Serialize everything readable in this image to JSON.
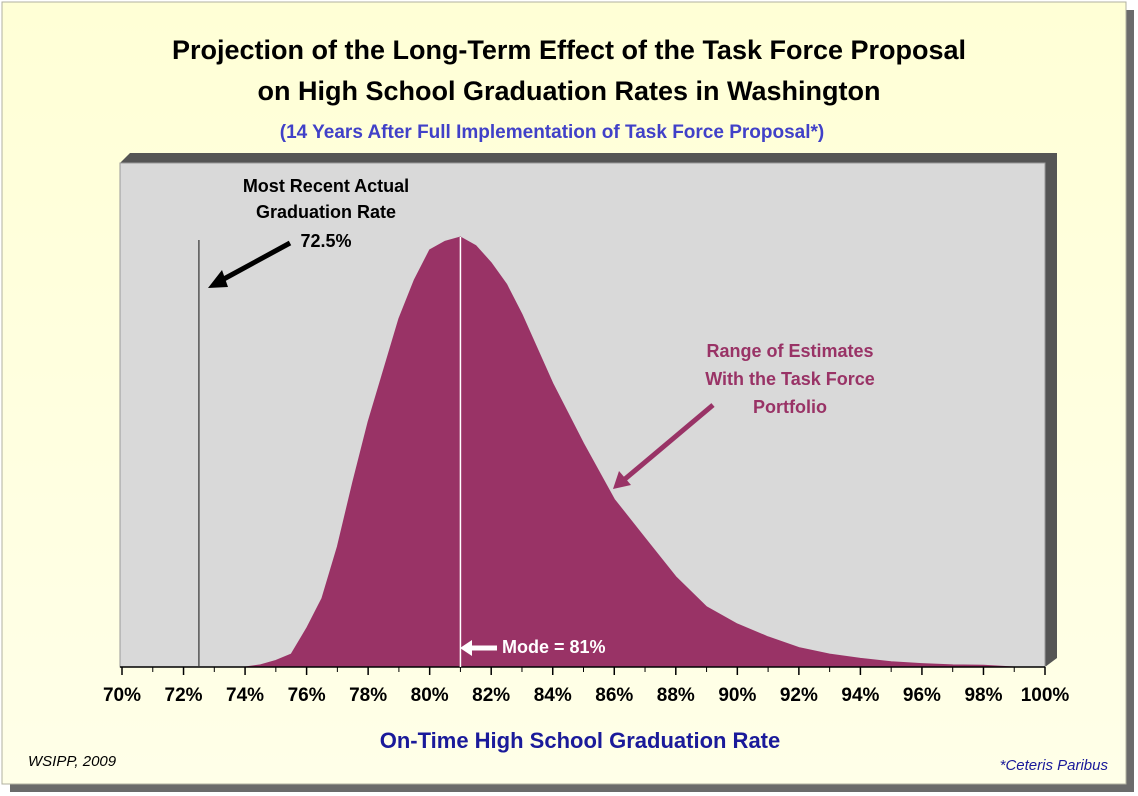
{
  "chart_data": {
    "type": "area",
    "title": [
      "Projection of the Long-Term Effect of the Task Force Proposal",
      "on High School Graduation Rates in Washington"
    ],
    "subtitle": "(14 Years After Full Implementation of Task Force Proposal*)",
    "xlabel": "On-Time High School Graduation Rate",
    "source": "WSIPP, 2009",
    "footnote": "*Ceteris Paribus",
    "color": "#993366",
    "x": [
      70,
      73,
      74,
      74.5,
      75,
      75.5,
      76,
      76.5,
      77,
      77.5,
      78,
      78.5,
      79,
      79.5,
      80,
      80.5,
      81,
      81.5,
      82,
      82.5,
      83,
      84,
      85,
      86,
      87,
      88,
      89,
      90,
      91,
      92,
      93,
      94,
      95,
      96,
      97,
      98,
      99,
      100
    ],
    "values": [
      0,
      0,
      0,
      0.005,
      0.015,
      0.03,
      0.09,
      0.16,
      0.28,
      0.43,
      0.57,
      0.69,
      0.81,
      0.9,
      0.97,
      0.99,
      1,
      0.98,
      0.94,
      0.89,
      0.82,
      0.66,
      0.52,
      0.39,
      0.3,
      0.21,
      0.14,
      0.1,
      0.07,
      0.045,
      0.03,
      0.02,
      0.012,
      0.008,
      0.005,
      0.004,
      0,
      0
    ],
    "xlim": [
      70,
      100
    ],
    "ylim": [
      0,
      1
    ],
    "xticks": [
      {
        "value": 70,
        "label": "70%"
      },
      {
        "value": 72,
        "label": "72%"
      },
      {
        "value": 74,
        "label": "74%"
      },
      {
        "value": 76,
        "label": "76%"
      },
      {
        "value": 78,
        "label": "78%"
      },
      {
        "value": 80,
        "label": "80%"
      },
      {
        "value": 82,
        "label": "82%"
      },
      {
        "value": 84,
        "label": "84%"
      },
      {
        "value": 86,
        "label": "86%"
      },
      {
        "value": 88,
        "label": "88%"
      },
      {
        "value": 90,
        "label": "90%"
      },
      {
        "value": 92,
        "label": "92%"
      },
      {
        "value": 94,
        "label": "94%"
      },
      {
        "value": 96,
        "label": "96%"
      },
      {
        "value": 98,
        "label": "98%"
      },
      {
        "value": 100,
        "label": "100%"
      }
    ],
    "minor_xticks": [
      71,
      73,
      75,
      77,
      79,
      81,
      83,
      85,
      87,
      89,
      91,
      93,
      95,
      97,
      99
    ],
    "reference_line": {
      "value": 72.5,
      "label_lines": [
        "Most Recent Actual",
        "Graduation Rate"
      ],
      "value_label": "72.5%"
    },
    "mode_line": {
      "value": 81,
      "label": "Mode = 81%"
    },
    "series_annotation": [
      "Range of Estimates",
      "With the Task Force",
      "Portfolio"
    ]
  }
}
